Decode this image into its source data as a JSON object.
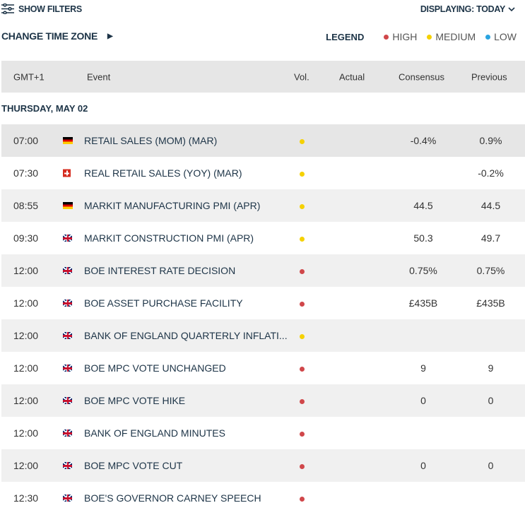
{
  "header": {
    "show_filters": "SHOW FILTERS",
    "displaying": "DISPLAYING: TODAY",
    "change_tz": "CHANGE TIME ZONE",
    "legend_title": "LEGEND",
    "legend": [
      {
        "label": "HIGH",
        "color": "#d0474a"
      },
      {
        "label": "MEDIUM",
        "color": "#f5d100"
      },
      {
        "label": "LOW",
        "color": "#2aa4e0"
      }
    ]
  },
  "columns": {
    "time": "GMT+1",
    "event": "Event",
    "vol": "Vol.",
    "actual": "Actual",
    "consensus": "Consensus",
    "previous": "Previous"
  },
  "day": "THURSDAY, MAY 02",
  "rows": [
    {
      "time": "07:00",
      "flag": "de",
      "event": "RETAIL SALES (MOM) (MAR)",
      "vol": "medium",
      "consensus": "-0.4%",
      "previous": "0.9%"
    },
    {
      "time": "07:30",
      "flag": "ch",
      "event": "REAL RETAIL SALES (YOY) (MAR)",
      "vol": "medium",
      "consensus": "",
      "previous": "-0.2%"
    },
    {
      "time": "08:55",
      "flag": "de",
      "event": "MARKIT MANUFACTURING PMI (APR)",
      "vol": "medium",
      "consensus": "44.5",
      "previous": "44.5"
    },
    {
      "time": "09:30",
      "flag": "gb",
      "event": "MARKIT CONSTRUCTION PMI (APR)",
      "vol": "medium",
      "consensus": "50.3",
      "previous": "49.7"
    },
    {
      "time": "12:00",
      "flag": "gb",
      "event": "BOE INTEREST RATE DECISION",
      "vol": "high",
      "consensus": "0.75%",
      "previous": "0.75%"
    },
    {
      "time": "12:00",
      "flag": "gb",
      "event": "BOE ASSET PURCHASE FACILITY",
      "vol": "high",
      "consensus": "£435B",
      "previous": "£435B"
    },
    {
      "time": "12:00",
      "flag": "gb",
      "event": "BANK OF ENGLAND QUARTERLY INFLATI...",
      "vol": "medium",
      "consensus": "",
      "previous": ""
    },
    {
      "time": "12:00",
      "flag": "gb",
      "event": "BOE MPC VOTE UNCHANGED",
      "vol": "high",
      "consensus": "9",
      "previous": "9"
    },
    {
      "time": "12:00",
      "flag": "gb",
      "event": "BOE MPC VOTE HIKE",
      "vol": "high",
      "consensus": "0",
      "previous": "0"
    },
    {
      "time": "12:00",
      "flag": "gb",
      "event": "BANK OF ENGLAND MINUTES",
      "vol": "high",
      "consensus": "",
      "previous": ""
    },
    {
      "time": "12:00",
      "flag": "gb",
      "event": "BOE MPC VOTE CUT",
      "vol": "high",
      "consensus": "0",
      "previous": "0"
    },
    {
      "time": "12:30",
      "flag": "gb",
      "event": "BOE'S GOVERNOR CARNEY SPEECH",
      "vol": "high",
      "consensus": "",
      "previous": ""
    }
  ]
}
